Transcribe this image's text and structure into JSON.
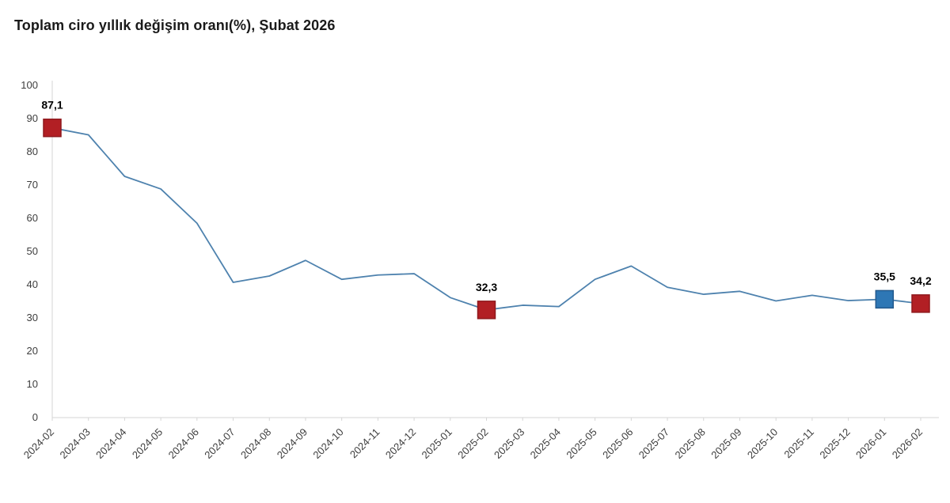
{
  "title": "Toplam ciro yıllık değişim oranı(%), Şubat 2026",
  "chart_data": {
    "type": "line",
    "title": "Toplam ciro yıllık değişim oranı(%), Şubat 2026",
    "x": [
      "2024-02",
      "2024-03",
      "2024-04",
      "2024-05",
      "2024-06",
      "2024-07",
      "2024-08",
      "2024-09",
      "2024-10",
      "2024-11",
      "2024-12",
      "2025-01",
      "2025-02",
      "2025-03",
      "2025-04",
      "2025-05",
      "2025-06",
      "2025-07",
      "2025-08",
      "2025-09",
      "2025-10",
      "2025-11",
      "2025-12",
      "2026-01",
      "2026-02"
    ],
    "series": [
      {
        "name": "Toplam ciro yıllık değişim oranı (%)",
        "values": [
          87.1,
          85.0,
          72.5,
          68.7,
          58.4,
          40.6,
          42.5,
          47.2,
          41.5,
          42.8,
          43.2,
          36.0,
          32.3,
          33.7,
          33.3,
          41.5,
          45.5,
          39.1,
          37.0,
          37.9,
          35.0,
          36.7,
          35.1,
          35.5,
          34.2
        ]
      }
    ],
    "xlabel": "",
    "ylabel": "",
    "ylim": [
      0,
      100
    ],
    "yticks": [
      0,
      10,
      20,
      30,
      40,
      50,
      60,
      70,
      80,
      90,
      100
    ],
    "grid": false,
    "legend_position": "none",
    "annotated_points": [
      {
        "x": "2024-02",
        "value": 87.1,
        "label": "87,1",
        "marker": "square",
        "marker_color": "#b21f24",
        "marker_border": "#8f191d"
      },
      {
        "x": "2025-02",
        "value": 32.3,
        "label": "32,3",
        "marker": "square",
        "marker_color": "#b21f24",
        "marker_border": "#8f191d"
      },
      {
        "x": "2026-01",
        "value": 35.5,
        "label": "35,5",
        "marker": "square",
        "marker_color": "#2e77b5",
        "marker_border": "#23598c"
      },
      {
        "x": "2026-02",
        "value": 34.2,
        "label": "34,2",
        "marker": "square",
        "marker_color": "#b21f24",
        "marker_border": "#8f191d"
      }
    ],
    "colors": {
      "line": "#4e82ae",
      "marker_red": "#b21f24",
      "marker_blue": "#2e77b5",
      "axis": "#d6d6d6",
      "axis_text": "#3d3d3d",
      "data_label": "#000000",
      "title_text": "#1a1a1a"
    }
  }
}
